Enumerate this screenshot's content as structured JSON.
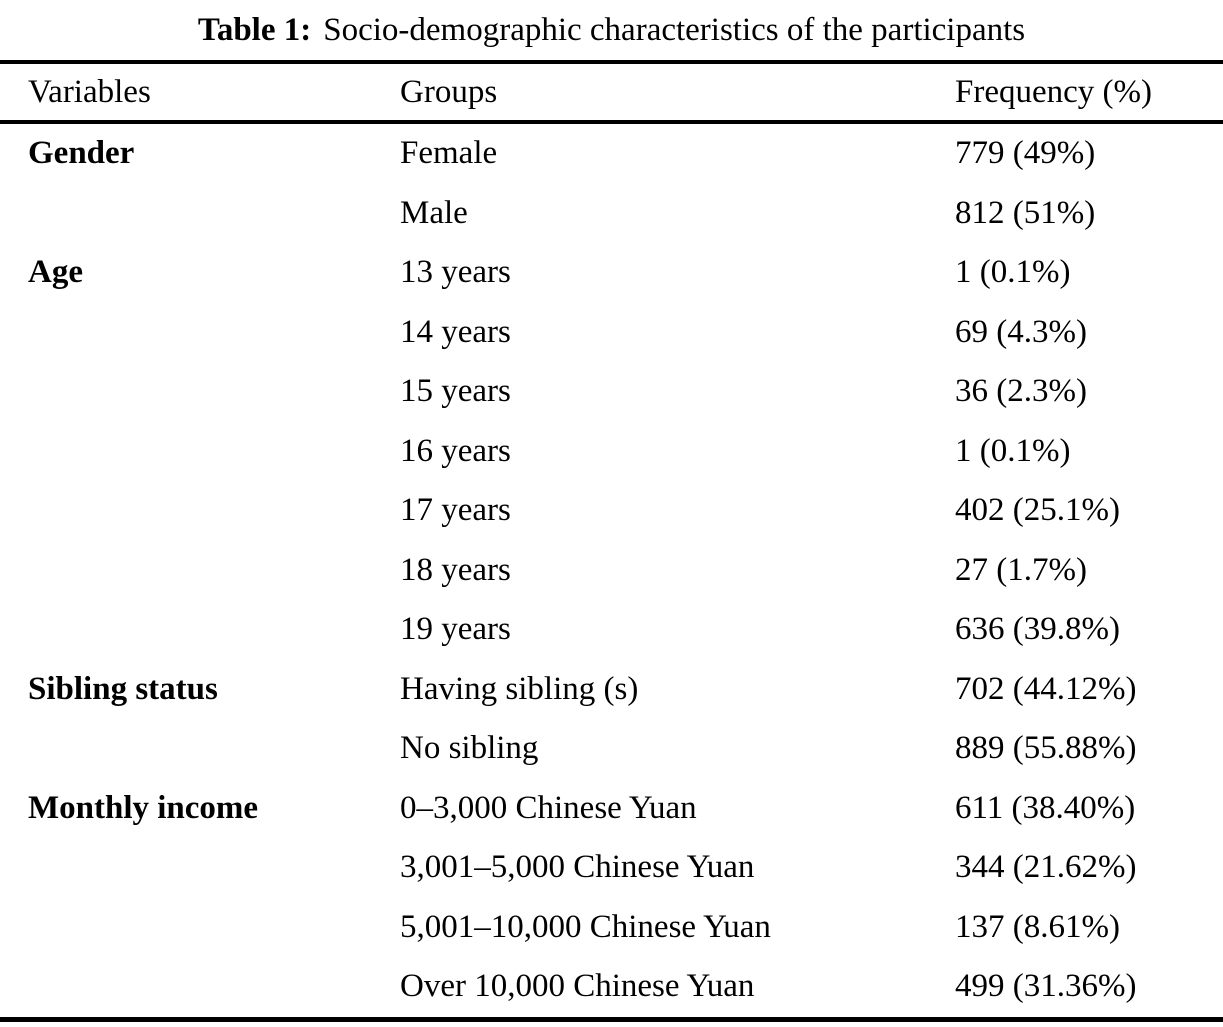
{
  "caption": {
    "label": "Table 1:",
    "text": "Socio-demographic characteristics of the participants"
  },
  "table": {
    "headers": [
      "Variables",
      "Groups",
      "Frequency (%)"
    ],
    "rows": [
      {
        "variable": "Gender",
        "group": "Female",
        "frequency": "779 (49%)"
      },
      {
        "variable": "",
        "group": "Male",
        "frequency": "812 (51%)"
      },
      {
        "variable": "Age",
        "group": "13 years",
        "frequency": "1 (0.1%)"
      },
      {
        "variable": "",
        "group": "14 years",
        "frequency": "69 (4.3%)"
      },
      {
        "variable": "",
        "group": "15 years",
        "frequency": "36 (2.3%)"
      },
      {
        "variable": "",
        "group": "16 years",
        "frequency": "1 (0.1%)"
      },
      {
        "variable": "",
        "group": "17 years",
        "frequency": "402 (25.1%)"
      },
      {
        "variable": "",
        "group": "18 years",
        "frequency": "27 (1.7%)"
      },
      {
        "variable": "",
        "group": "19 years",
        "frequency": "636 (39.8%)"
      },
      {
        "variable": "Sibling status",
        "group": "Having sibling (s)",
        "frequency": "702 (44.12%)"
      },
      {
        "variable": "",
        "group": "No sibling",
        "frequency": "889 (55.88%)"
      },
      {
        "variable": "Monthly income",
        "group": "0–3,000 Chinese Yuan",
        "frequency": "611 (38.40%)"
      },
      {
        "variable": "",
        "group": "3,001–5,000 Chinese Yuan",
        "frequency": "344 (21.62%)"
      },
      {
        "variable": "",
        "group": "5,001–10,000 Chinese Yuan",
        "frequency": "137 (8.61%)"
      },
      {
        "variable": "",
        "group": "Over 10,000 Chinese Yuan",
        "frequency": "499 (31.36%)"
      }
    ]
  }
}
